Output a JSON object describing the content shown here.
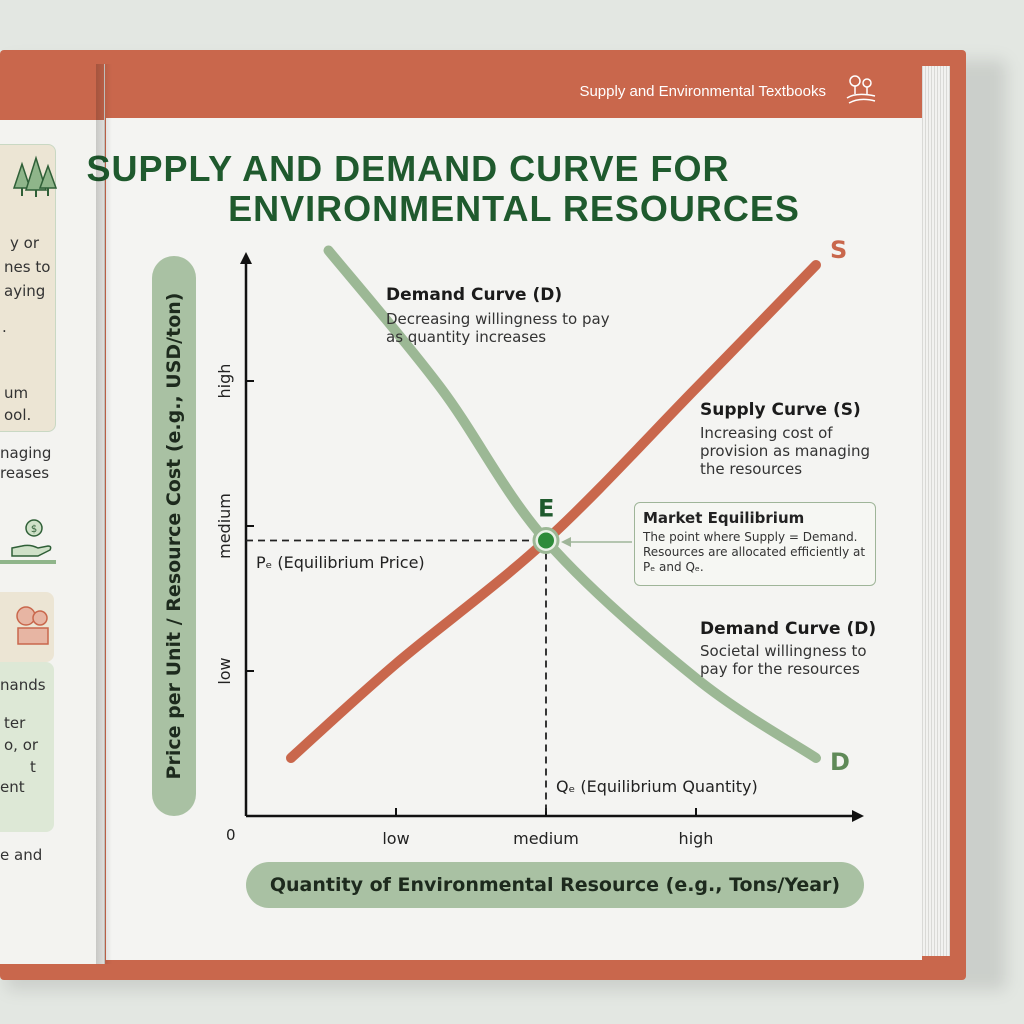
{
  "header": {
    "text": "Supply and Environmental Textbooks",
    "icon": "landscape-icon"
  },
  "title_lines": [
    "SUPPLY AND DEMAND CURVE FOR",
    "ENVIRONMENTAL RESOURCES"
  ],
  "left_page_fragments": [
    "y or",
    "nes to",
    "aying",
    ".",
    "um",
    "ool.",
    "naging",
    "reases",
    "nands",
    "ter",
    "o, or",
    "t",
    "ent",
    "e and"
  ],
  "annotations": {
    "demand_top_title": "Demand Curve (D)",
    "demand_top_text": "Decreasing willingness to pay as quantity increases",
    "supply_title": "Supply Curve (S)",
    "supply_text": "Increasing cost of provision as managing the resources",
    "equilibrium_title": "Market Equilibrium",
    "equilibrium_text": "The point where Supply = Demand. Resources are allocated efficiently at Pₑ and Qₑ.",
    "demand_bottom_title": "Demand Curve (D)",
    "demand_bottom_text": "Societal willingness to pay for the resources",
    "pe_label": "Pₑ (Equilibrium Price)",
    "qe_label": "Qₑ (Equilibrium Quantity)",
    "e_label": "E",
    "s_label": "S",
    "d_label": "D"
  },
  "colors": {
    "supply": "#c9674c",
    "demand": "#9cb895",
    "title": "#1f5a2e",
    "equilibrium_dot": "#2e8b3a"
  },
  "chart_data": {
    "type": "line",
    "title": "SUPPLY AND DEMAND CURVE FOR ENVIRONMENTAL RESOURCES",
    "xlabel": "Quantity of Environmental Resource (e.g., Tons/Year)",
    "ylabel": "Price per Unit / Resource Cost (e.g., USD/ton)",
    "x_ticks": [
      "low",
      "medium",
      "high"
    ],
    "y_ticks": [
      "low",
      "medium",
      "high"
    ],
    "origin_label": "0",
    "xlim": [
      0,
      4
    ],
    "ylim": [
      0,
      4
    ],
    "series": [
      {
        "name": "S",
        "x": [
          0.3,
          1.0,
          2.0,
          3.0,
          3.8
        ],
        "y": [
          0.4,
          1.05,
          1.9,
          2.95,
          3.8
        ]
      },
      {
        "name": "D",
        "x": [
          0.55,
          1.3,
          2.0,
          3.0,
          3.8
        ],
        "y": [
          3.9,
          2.95,
          1.9,
          0.95,
          0.4
        ]
      }
    ],
    "equilibrium": {
      "label": "E",
      "x": 2,
      "y": 1.9
    },
    "grid": false
  }
}
